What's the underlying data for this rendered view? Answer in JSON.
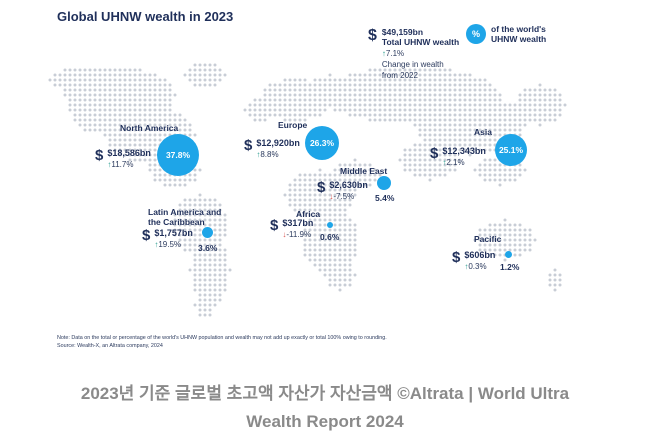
{
  "chart_data": {
    "type": "map",
    "title": "Global UHNW wealth in 2023",
    "legend": {
      "total_value": "$49,159bn",
      "total_label": "Total UHNW wealth",
      "total_change": "7.1%",
      "total_change_label_1": "Change in wealth",
      "total_change_label_2": "from 2022",
      "pct_symbol": "%",
      "pct_label_1": "of the world's",
      "pct_label_2": "UHNW wealth"
    },
    "regions": [
      {
        "name": "North America",
        "name_2": "",
        "wealth": "$18,586bn",
        "wealth_bn": 18586,
        "change": "11.7%",
        "change_pct": 11.7,
        "direction": "up",
        "share": "37.8%",
        "share_pct": 37.8
      },
      {
        "name": "Europe",
        "name_2": "",
        "wealth": "$12,920bn",
        "wealth_bn": 12920,
        "change": "8.8%",
        "change_pct": 8.8,
        "direction": "up",
        "share": "26.3%",
        "share_pct": 26.3
      },
      {
        "name": "Asia",
        "name_2": "",
        "wealth": "$12,343bn",
        "wealth_bn": 12343,
        "change": "2.1%",
        "change_pct": 2.1,
        "direction": "up",
        "share": "25.1%",
        "share_pct": 25.1
      },
      {
        "name": "Middle East",
        "name_2": "",
        "wealth": "$2,630bn",
        "wealth_bn": 2630,
        "change": "-7.5%",
        "change_pct": -7.5,
        "direction": "down",
        "share": "5.4%",
        "share_pct": 5.4
      },
      {
        "name": "Latin America and",
        "name_2": "the Caribbean",
        "wealth": "$1,757bn",
        "wealth_bn": 1757,
        "change": "19.5%",
        "change_pct": 19.5,
        "direction": "up",
        "share": "3.6%",
        "share_pct": 3.6
      },
      {
        "name": "Africa",
        "name_2": "",
        "wealth": "$317bn",
        "wealth_bn": 317,
        "change": "-11.9%",
        "change_pct": -11.9,
        "direction": "down",
        "share": "0.6%",
        "share_pct": 0.6
      },
      {
        "name": "Pacific",
        "name_2": "",
        "wealth": "$606bn",
        "wealth_bn": 606,
        "change": "0.3%",
        "change_pct": 0.3,
        "direction": "up",
        "share": "1.2%",
        "share_pct": 1.2
      }
    ],
    "note": "Note: Data on the total or percentage of the world's UHNW population and wealth may not add up exactly or total 100% owing to rounding.",
    "source": "Source: Wealth-X, an Altrata company, 2024"
  },
  "caption": {
    "line1": "2023년 기준 글로벌 초고액 자산가 자산금액 ©Altrata | World Ultra",
    "line2": "Wealth Report 2024"
  },
  "colors": {
    "accent": "#1ea5e8",
    "map_dots": "#c8cdd6",
    "text": "#1f2f5a",
    "up": "#2a9d8f",
    "down": "#d9534f",
    "caption": "#8a8a8a"
  },
  "symbols": {
    "currency": "$",
    "arrow_up": "↑",
    "arrow_down": "↓"
  }
}
